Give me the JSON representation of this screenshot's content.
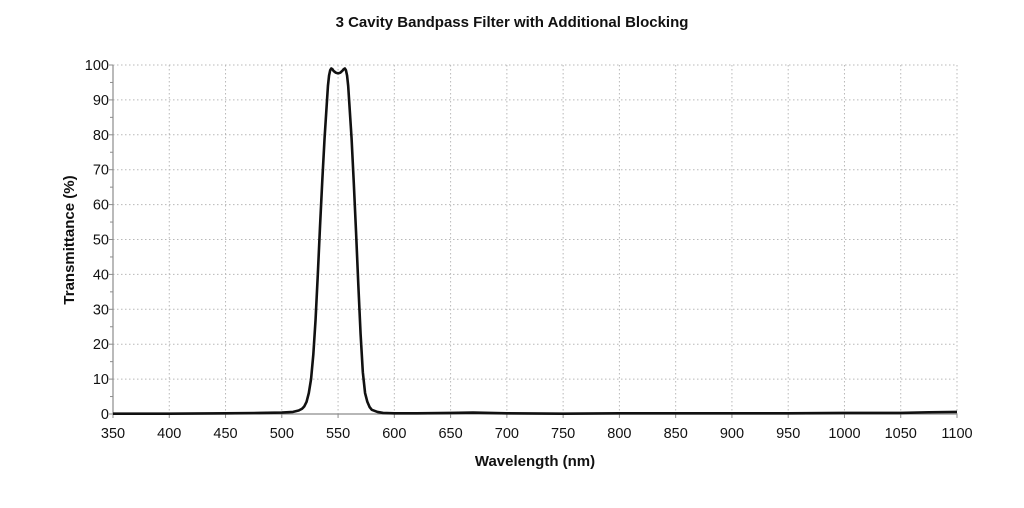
{
  "chart_data": {
    "type": "line",
    "title": "3 Cavity Bandpass Filter with Additional Blocking",
    "xlabel": "Wavelength (nm)",
    "ylabel": "Transmittance (%)",
    "xlim": [
      350,
      1100
    ],
    "ylim": [
      0,
      100
    ],
    "xticks": [
      350,
      400,
      450,
      500,
      550,
      600,
      650,
      700,
      750,
      800,
      850,
      900,
      950,
      1000,
      1050,
      1100
    ],
    "yticks": [
      0,
      10,
      20,
      30,
      40,
      50,
      60,
      70,
      80,
      90,
      100
    ],
    "y_minor_step": 5,
    "grid": true,
    "legend": null,
    "series": [
      {
        "name": "Transmittance",
        "color": "#111111",
        "x": [
          350,
          400,
          450,
          480,
          500,
          510,
          515,
          518,
          520,
          522,
          524,
          526,
          528,
          530,
          532,
          534,
          536,
          538,
          540,
          541,
          542,
          543,
          544,
          545,
          546,
          548,
          550,
          552,
          554,
          555,
          556,
          557,
          558,
          559,
          560,
          562,
          564,
          566,
          568,
          570,
          572,
          574,
          576,
          578,
          580,
          585,
          590,
          600,
          620,
          650,
          670,
          700,
          750,
          800,
          850,
          900,
          950,
          1000,
          1050,
          1075,
          1100
        ],
        "y": [
          0.1,
          0.1,
          0.2,
          0.3,
          0.4,
          0.6,
          1.0,
          1.5,
          2.2,
          3.5,
          6,
          10,
          17,
          27,
          40,
          54,
          67,
          79,
          89,
          94,
          97,
          98.5,
          99,
          98.8,
          98.3,
          97.8,
          97.6,
          97.8,
          98.4,
          98.8,
          99,
          98.5,
          97,
          94,
          89,
          79,
          66,
          52,
          37,
          23,
          12,
          6,
          3.5,
          2,
          1.2,
          0.6,
          0.3,
          0.2,
          0.2,
          0.3,
          0.4,
          0.2,
          0.1,
          0.2,
          0.2,
          0.2,
          0.2,
          0.3,
          0.3,
          0.5,
          0.6
        ]
      }
    ]
  }
}
